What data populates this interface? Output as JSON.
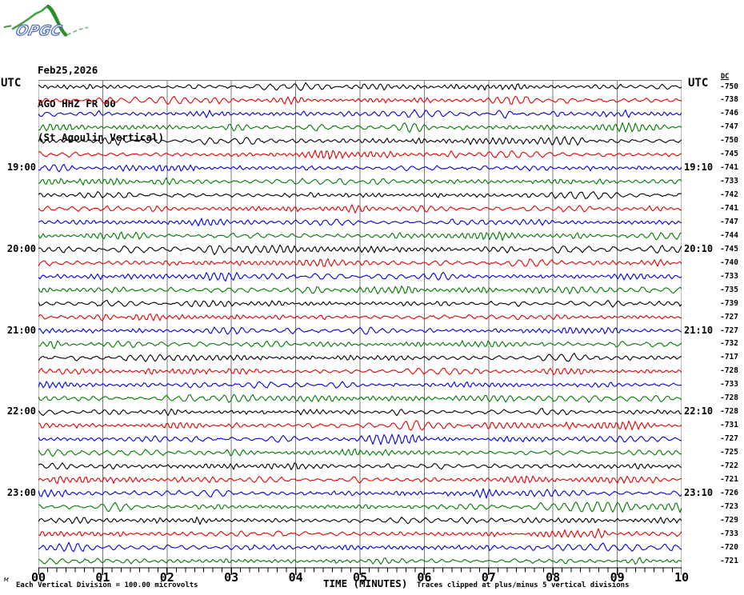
{
  "logo": {
    "text": "OPGC"
  },
  "header": {
    "date": "Feb25,2026",
    "station": "AGO HHZ FR 00",
    "station_name": "(St Agoulin Vertical)"
  },
  "axis": {
    "left_header": "UTC",
    "right_header": "UTC",
    "dc_header": "DC",
    "x_label": "TIME (MINUTES)",
    "x_ticks": [
      "00",
      "01",
      "02",
      "03",
      "04",
      "05",
      "06",
      "07",
      "08",
      "09",
      "10"
    ]
  },
  "footer": {
    "left_note": "Each Vertical Division =  100.00 microvolts",
    "right_note": "Traces clipped at plus/minus 5 vertical divisions",
    "mark": "м"
  },
  "chart_data": {
    "type": "line",
    "subtype": "helicorder-seismogram",
    "title": "AGO HHZ FR 00 (St Agoulin Vertical) Feb25,2026",
    "xlabel": "TIME (MINUTES)",
    "x_range": [
      0,
      10
    ],
    "x_major_tick": 1,
    "x_minor_intervals": 7,
    "minutes_per_row": 10,
    "rows_count": 36,
    "grid": "vertical-only",
    "trace_colors": {
      "black": "#000000",
      "red": "#e60000",
      "blue": "#0000dd",
      "green": "#007a00"
    },
    "grid_color": "#787878",
    "rows": [
      {
        "utc_left": "",
        "utc_right": "",
        "dc": -750,
        "color": "black"
      },
      {
        "utc_left": "",
        "utc_right": "",
        "dc": -738,
        "color": "red"
      },
      {
        "utc_left": "",
        "utc_right": "",
        "dc": -746,
        "color": "blue"
      },
      {
        "utc_left": "",
        "utc_right": "",
        "dc": -747,
        "color": "green"
      },
      {
        "utc_left": "",
        "utc_right": "",
        "dc": -750,
        "color": "black"
      },
      {
        "utc_left": "",
        "utc_right": "",
        "dc": -745,
        "color": "red"
      },
      {
        "utc_left": "19:00",
        "utc_right": "19:10",
        "dc": -741,
        "color": "blue"
      },
      {
        "utc_left": "",
        "utc_right": "",
        "dc": -733,
        "color": "green"
      },
      {
        "utc_left": "",
        "utc_right": "",
        "dc": -742,
        "color": "black"
      },
      {
        "utc_left": "",
        "utc_right": "",
        "dc": -741,
        "color": "red"
      },
      {
        "utc_left": "",
        "utc_right": "",
        "dc": -747,
        "color": "blue"
      },
      {
        "utc_left": "",
        "utc_right": "",
        "dc": -744,
        "color": "green"
      },
      {
        "utc_left": "20:00",
        "utc_right": "20:10",
        "dc": -745,
        "color": "black"
      },
      {
        "utc_left": "",
        "utc_right": "",
        "dc": -740,
        "color": "red"
      },
      {
        "utc_left": "",
        "utc_right": "",
        "dc": -733,
        "color": "blue"
      },
      {
        "utc_left": "",
        "utc_right": "",
        "dc": -735,
        "color": "green"
      },
      {
        "utc_left": "",
        "utc_right": "",
        "dc": -739,
        "color": "black"
      },
      {
        "utc_left": "",
        "utc_right": "",
        "dc": -727,
        "color": "red"
      },
      {
        "utc_left": "21:00",
        "utc_right": "21:10",
        "dc": -727,
        "color": "blue"
      },
      {
        "utc_left": "",
        "utc_right": "",
        "dc": -732,
        "color": "green"
      },
      {
        "utc_left": "",
        "utc_right": "",
        "dc": -717,
        "color": "black"
      },
      {
        "utc_left": "",
        "utc_right": "",
        "dc": -728,
        "color": "red"
      },
      {
        "utc_left": "",
        "utc_right": "",
        "dc": -733,
        "color": "blue"
      },
      {
        "utc_left": "",
        "utc_right": "",
        "dc": -728,
        "color": "green"
      },
      {
        "utc_left": "22:00",
        "utc_right": "22:10",
        "dc": -728,
        "color": "black"
      },
      {
        "utc_left": "",
        "utc_right": "",
        "dc": -731,
        "color": "red"
      },
      {
        "utc_left": "",
        "utc_right": "",
        "dc": -727,
        "color": "blue"
      },
      {
        "utc_left": "",
        "utc_right": "",
        "dc": -725,
        "color": "green"
      },
      {
        "utc_left": "",
        "utc_right": "",
        "dc": -722,
        "color": "black"
      },
      {
        "utc_left": "",
        "utc_right": "",
        "dc": -721,
        "color": "red"
      },
      {
        "utc_left": "23:00",
        "utc_right": "23:10",
        "dc": -726,
        "color": "blue"
      },
      {
        "utc_left": "",
        "utc_right": "",
        "dc": -723,
        "color": "green"
      },
      {
        "utc_left": "",
        "utc_right": "",
        "dc": -729,
        "color": "black"
      },
      {
        "utc_left": "",
        "utc_right": "",
        "dc": -733,
        "color": "red"
      },
      {
        "utc_left": "",
        "utc_right": "",
        "dc": -720,
        "color": "blue"
      },
      {
        "utc_left": "",
        "utc_right": "",
        "dc": -721,
        "color": "green"
      }
    ]
  }
}
